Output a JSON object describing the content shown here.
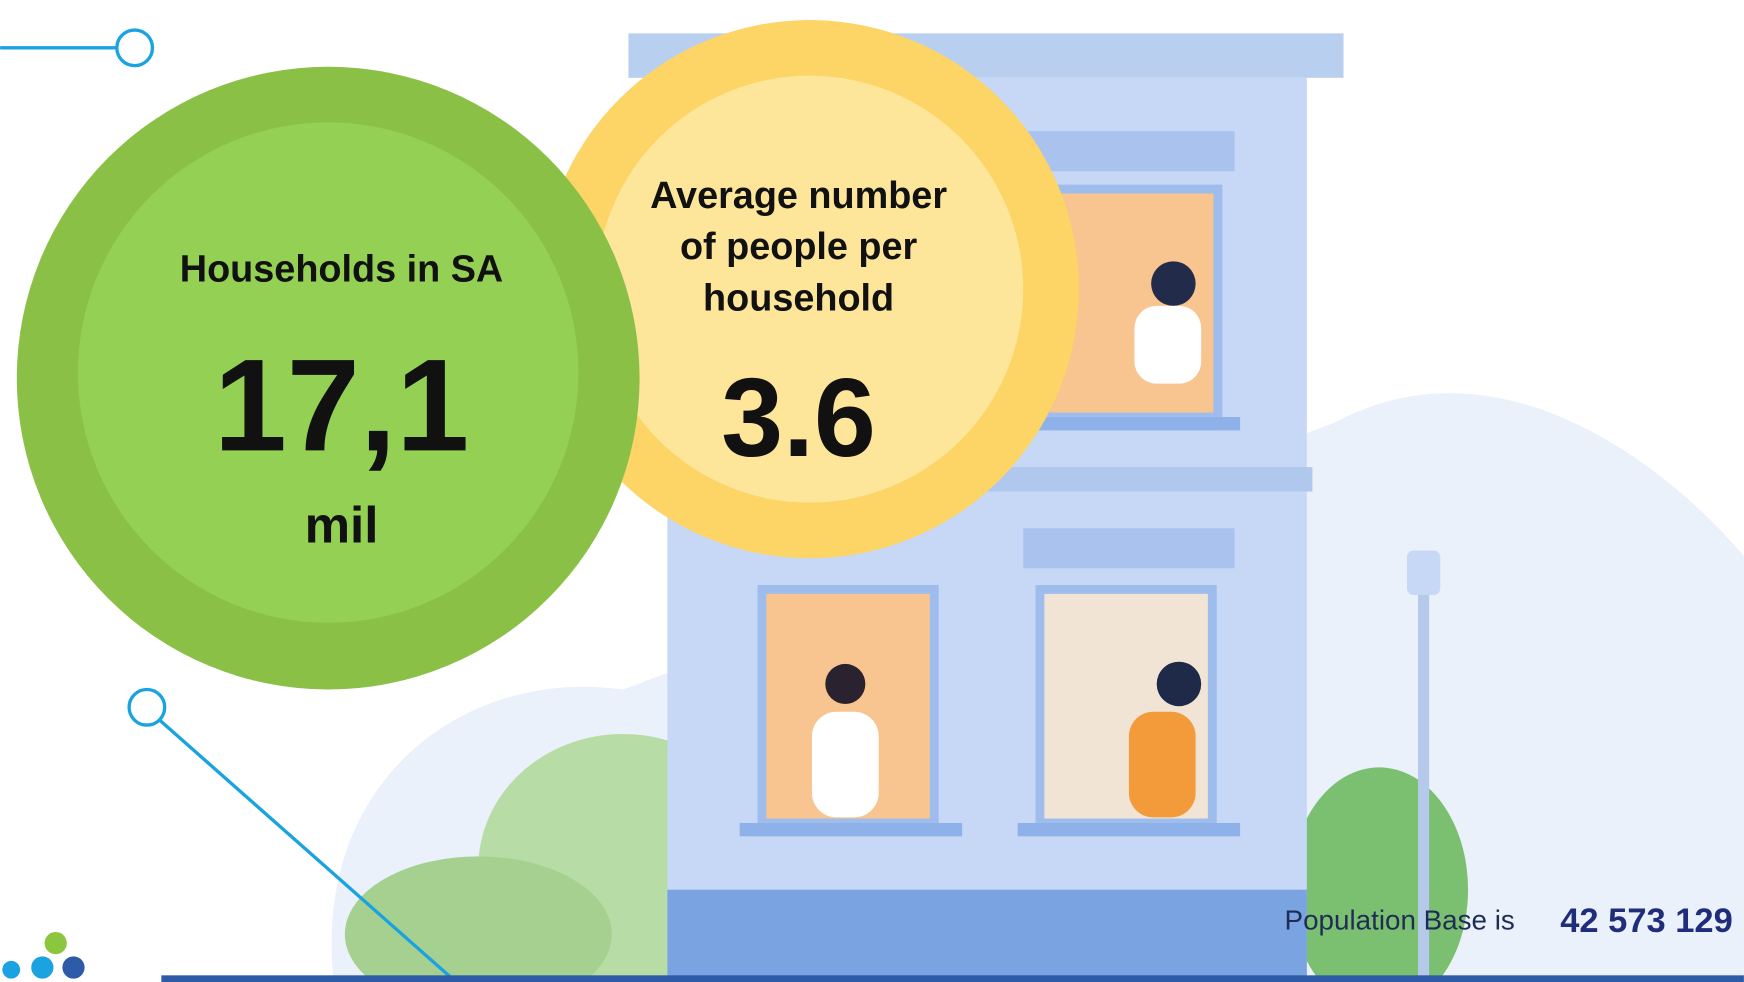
{
  "left_stat": {
    "label": "Households in SA",
    "value": "17,1",
    "unit": "mil"
  },
  "right_stat": {
    "label_lines": [
      "Average number",
      "of people per",
      "household"
    ],
    "value": "3.6"
  },
  "footer": {
    "prefix": "Population Base is",
    "value": "42 573 129"
  }
}
